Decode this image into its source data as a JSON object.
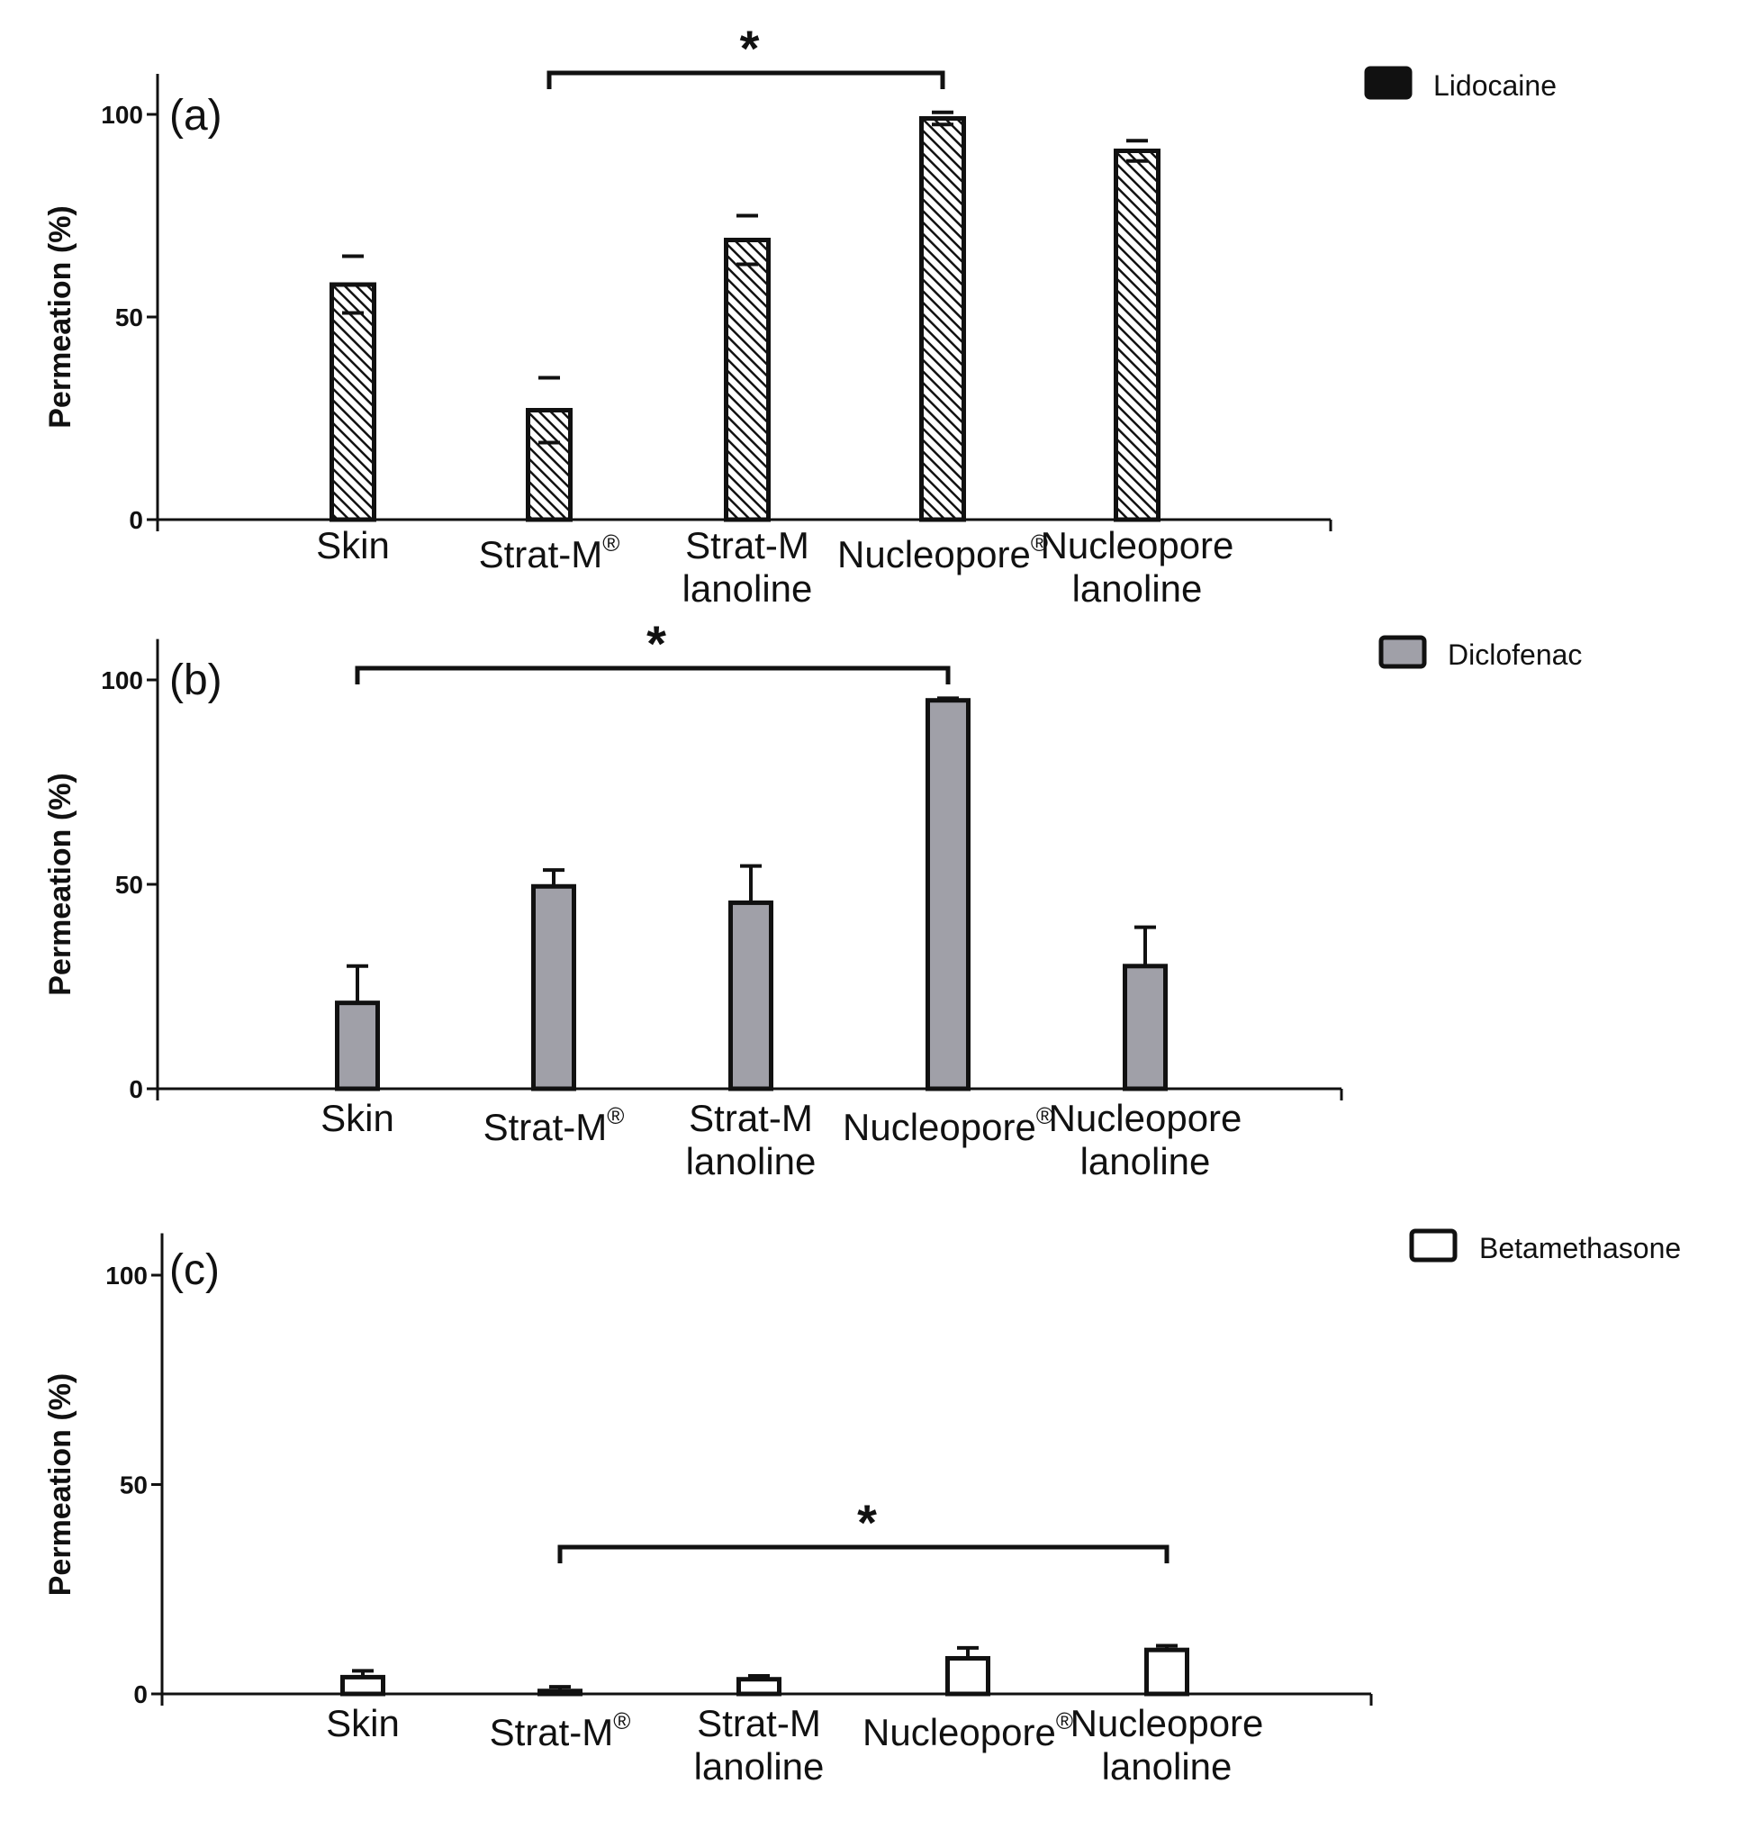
{
  "chart_data": [
    {
      "type": "bar",
      "panel_label": "(a)",
      "ylabel": "Permeation (%)",
      "ylim": [
        0,
        110
      ],
      "yticks": [
        "0",
        "50",
        "100"
      ],
      "categories": [
        {
          "line1": "Skin",
          "line2": "",
          "sup": ""
        },
        {
          "line1": "Strat-M",
          "line2": "",
          "sup": "®"
        },
        {
          "line1": "Strat-M",
          "line2": "lanoline",
          "sup": ""
        },
        {
          "line1": "Nucleopore",
          "line2": "",
          "sup": "®"
        },
        {
          "line1": "Nucleopore",
          "line2": "lanoline",
          "sup": ""
        }
      ],
      "series": [
        {
          "name": "Lidocaine",
          "values": [
            58,
            27,
            69,
            99,
            91
          ],
          "errors": [
            7,
            8,
            6,
            1.5,
            2.5
          ],
          "fill": "hatch"
        }
      ],
      "significance": {
        "from": 1,
        "to": 3,
        "label": "*"
      },
      "legend": {
        "label": "Lidocaine",
        "position": "top-right"
      }
    },
    {
      "type": "bar",
      "panel_label": "(b)",
      "ylabel": "Permeation (%)",
      "ylim": [
        0,
        110
      ],
      "yticks": [
        "0",
        "50",
        "100"
      ],
      "categories": [
        {
          "line1": "Skin",
          "line2": "",
          "sup": ""
        },
        {
          "line1": "Strat-M",
          "line2": "",
          "sup": "®"
        },
        {
          "line1": "Strat-M",
          "line2": "lanoline",
          "sup": ""
        },
        {
          "line1": "Nucleopore",
          "line2": "",
          "sup": "®"
        },
        {
          "line1": "Nucleopore",
          "line2": "lanoline",
          "sup": ""
        }
      ],
      "series": [
        {
          "name": "Diclofenac",
          "values": [
            21,
            49.5,
            45.5,
            95,
            30
          ],
          "errors": [
            9,
            4,
            9,
            0.5,
            9.5
          ],
          "fill": "#a0a0a8"
        }
      ],
      "significance": {
        "from": 0,
        "to": 3,
        "label": "*"
      },
      "legend": {
        "label": "Diclofenac",
        "position": "top-right"
      }
    },
    {
      "type": "bar",
      "panel_label": "(c)",
      "ylabel": "Permeation (%)",
      "ylim": [
        0,
        110
      ],
      "yticks": [
        "0",
        "50",
        "100"
      ],
      "categories": [
        {
          "line1": "Skin",
          "line2": "",
          "sup": ""
        },
        {
          "line1": "Strat-M",
          "line2": "",
          "sup": "®"
        },
        {
          "line1": "Strat-M",
          "line2": "lanoline",
          "sup": ""
        },
        {
          "line1": "Nucleopore",
          "line2": "",
          "sup": "®"
        },
        {
          "line1": "Nucleopore",
          "line2": "lanoline",
          "sup": ""
        }
      ],
      "series": [
        {
          "name": "Betamethasone",
          "values": [
            4,
            0.7,
            3.5,
            8.5,
            10.5
          ],
          "errors": [
            1.5,
            1,
            0.8,
            2.5,
            1
          ],
          "fill": "#ffffff"
        }
      ],
      "significance": {
        "from": 1,
        "to": 4,
        "label": "*"
      },
      "legend": {
        "label": "Betamethasone",
        "position": "top-right"
      }
    }
  ]
}
